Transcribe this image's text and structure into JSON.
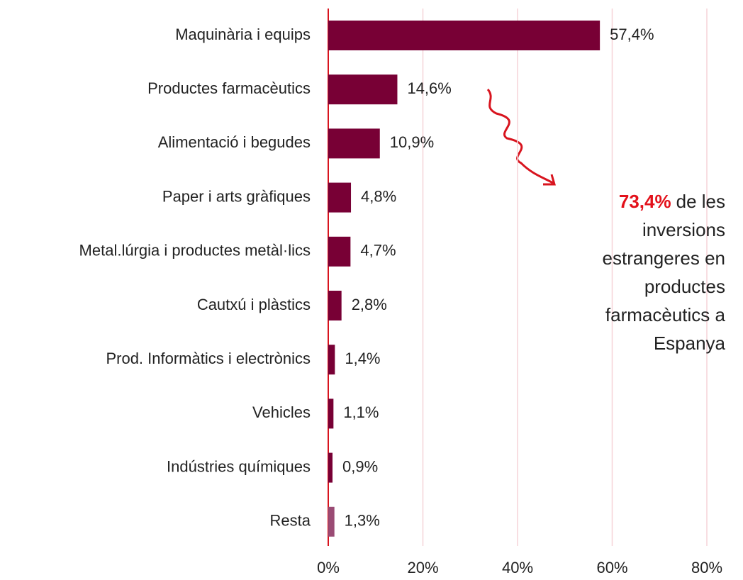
{
  "chart_data": {
    "type": "hbar",
    "categories": [
      "Maquinària i equips",
      "Productes farmacèutics",
      "Alimentació i begudes",
      "Paper i arts gràfiques",
      "Metal.lúrgia i productes metàl·lics",
      "Cautxú i plàstics",
      "Prod. Informàtics i electrònics",
      "Vehicles",
      "Indústries químiques",
      "Resta"
    ],
    "values": [
      57.4,
      14.6,
      10.9,
      4.8,
      4.7,
      2.8,
      1.4,
      1.1,
      0.9,
      1.3
    ],
    "value_labels": [
      "57,4%",
      "14,6%",
      "10,9%",
      "4,8%",
      "4,7%",
      "2,8%",
      "1,4%",
      "1,1%",
      "0,9%",
      "1,3%"
    ],
    "colors": [
      "#780035",
      "#780035",
      "#780035",
      "#780035",
      "#780035",
      "#780035",
      "#780035",
      "#780035",
      "#780035",
      "#9a4b74"
    ],
    "xlim": [
      0,
      80
    ],
    "xticks": [
      {
        "value": 0,
        "label": "0%"
      },
      {
        "value": 20,
        "label": "20%"
      },
      {
        "value": 40,
        "label": "40%"
      },
      {
        "value": 60,
        "label": "60%"
      },
      {
        "value": 80,
        "label": "80%"
      }
    ],
    "grid": true,
    "annotation": {
      "highlight": "73,4%",
      "lines": [
        "de les",
        "inversions",
        "estrangeres en",
        "productes",
        "farmacèutics a",
        "Espanya"
      ]
    }
  }
}
